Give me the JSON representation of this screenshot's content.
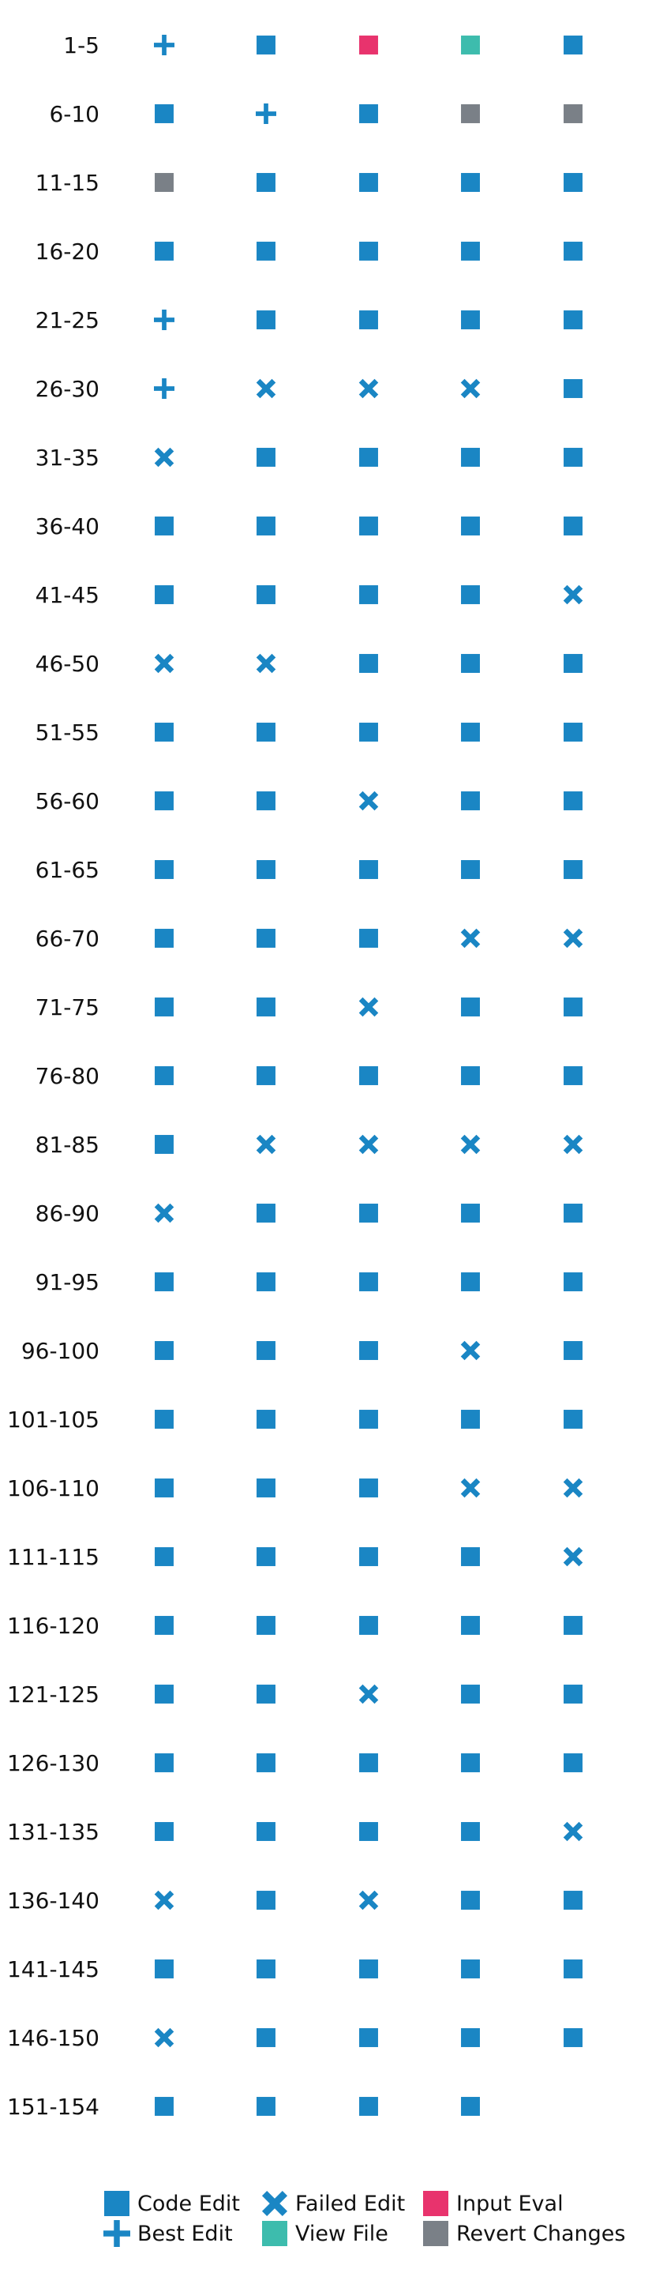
{
  "chart_data": {
    "type": "table",
    "title": "",
    "xlabel": "",
    "ylabel": "",
    "grid": false,
    "legend_placement": "bottom",
    "colors": {
      "code_edit": "#1a86c4",
      "best_edit": "#1a86c4",
      "failed_edit": "#1a86c4",
      "input_eval": "#e8336d",
      "view_file": "#3dbcad",
      "revert_changes": "#7a8087"
    },
    "legend": [
      {
        "key": "code_edit",
        "label": "Code Edit",
        "marker": "square"
      },
      {
        "key": "best_edit",
        "label": "Best Edit",
        "marker": "plus"
      },
      {
        "key": "failed_edit",
        "label": "Failed Edit",
        "marker": "cross"
      },
      {
        "key": "view_file",
        "label": "View File",
        "marker": "square"
      },
      {
        "key": "input_eval",
        "label": "Input Eval",
        "marker": "square"
      },
      {
        "key": "revert_changes",
        "label": "Revert Changes",
        "marker": "square"
      }
    ],
    "rows": [
      {
        "label": "1-5",
        "steps": [
          "best_edit",
          "code_edit",
          "input_eval",
          "view_file",
          "code_edit"
        ]
      },
      {
        "label": "6-10",
        "steps": [
          "code_edit",
          "best_edit",
          "code_edit",
          "revert_changes",
          "revert_changes"
        ]
      },
      {
        "label": "11-15",
        "steps": [
          "revert_changes",
          "code_edit",
          "code_edit",
          "code_edit",
          "code_edit"
        ]
      },
      {
        "label": "16-20",
        "steps": [
          "code_edit",
          "code_edit",
          "code_edit",
          "code_edit",
          "code_edit"
        ]
      },
      {
        "label": "21-25",
        "steps": [
          "best_edit",
          "code_edit",
          "code_edit",
          "code_edit",
          "code_edit"
        ]
      },
      {
        "label": "26-30",
        "steps": [
          "best_edit",
          "failed_edit",
          "failed_edit",
          "failed_edit",
          "code_edit"
        ]
      },
      {
        "label": "31-35",
        "steps": [
          "failed_edit",
          "code_edit",
          "code_edit",
          "code_edit",
          "code_edit"
        ]
      },
      {
        "label": "36-40",
        "steps": [
          "code_edit",
          "code_edit",
          "code_edit",
          "code_edit",
          "code_edit"
        ]
      },
      {
        "label": "41-45",
        "steps": [
          "code_edit",
          "code_edit",
          "code_edit",
          "code_edit",
          "failed_edit"
        ]
      },
      {
        "label": "46-50",
        "steps": [
          "failed_edit",
          "failed_edit",
          "code_edit",
          "code_edit",
          "code_edit"
        ]
      },
      {
        "label": "51-55",
        "steps": [
          "code_edit",
          "code_edit",
          "code_edit",
          "code_edit",
          "code_edit"
        ]
      },
      {
        "label": "56-60",
        "steps": [
          "code_edit",
          "code_edit",
          "failed_edit",
          "code_edit",
          "code_edit"
        ]
      },
      {
        "label": "61-65",
        "steps": [
          "code_edit",
          "code_edit",
          "code_edit",
          "code_edit",
          "code_edit"
        ]
      },
      {
        "label": "66-70",
        "steps": [
          "code_edit",
          "code_edit",
          "code_edit",
          "failed_edit",
          "failed_edit"
        ]
      },
      {
        "label": "71-75",
        "steps": [
          "code_edit",
          "code_edit",
          "failed_edit",
          "code_edit",
          "code_edit"
        ]
      },
      {
        "label": "76-80",
        "steps": [
          "code_edit",
          "code_edit",
          "code_edit",
          "code_edit",
          "code_edit"
        ]
      },
      {
        "label": "81-85",
        "steps": [
          "code_edit",
          "failed_edit",
          "failed_edit",
          "failed_edit",
          "failed_edit"
        ]
      },
      {
        "label": "86-90",
        "steps": [
          "failed_edit",
          "code_edit",
          "code_edit",
          "code_edit",
          "code_edit"
        ]
      },
      {
        "label": "91-95",
        "steps": [
          "code_edit",
          "code_edit",
          "code_edit",
          "code_edit",
          "code_edit"
        ]
      },
      {
        "label": "96-100",
        "steps": [
          "code_edit",
          "code_edit",
          "code_edit",
          "failed_edit",
          "code_edit"
        ]
      },
      {
        "label": "101-105",
        "steps": [
          "code_edit",
          "code_edit",
          "code_edit",
          "code_edit",
          "code_edit"
        ]
      },
      {
        "label": "106-110",
        "steps": [
          "code_edit",
          "code_edit",
          "code_edit",
          "failed_edit",
          "failed_edit"
        ]
      },
      {
        "label": "111-115",
        "steps": [
          "code_edit",
          "code_edit",
          "code_edit",
          "code_edit",
          "failed_edit"
        ]
      },
      {
        "label": "116-120",
        "steps": [
          "code_edit",
          "code_edit",
          "code_edit",
          "code_edit",
          "code_edit"
        ]
      },
      {
        "label": "121-125",
        "steps": [
          "code_edit",
          "code_edit",
          "failed_edit",
          "code_edit",
          "code_edit"
        ]
      },
      {
        "label": "126-130",
        "steps": [
          "code_edit",
          "code_edit",
          "code_edit",
          "code_edit",
          "code_edit"
        ]
      },
      {
        "label": "131-135",
        "steps": [
          "code_edit",
          "code_edit",
          "code_edit",
          "code_edit",
          "failed_edit"
        ]
      },
      {
        "label": "136-140",
        "steps": [
          "failed_edit",
          "code_edit",
          "failed_edit",
          "code_edit",
          "code_edit"
        ]
      },
      {
        "label": "141-145",
        "steps": [
          "code_edit",
          "code_edit",
          "code_edit",
          "code_edit",
          "code_edit"
        ]
      },
      {
        "label": "146-150",
        "steps": [
          "failed_edit",
          "code_edit",
          "code_edit",
          "code_edit",
          "code_edit"
        ]
      },
      {
        "label": "151-154",
        "steps": [
          "code_edit",
          "code_edit",
          "code_edit",
          "code_edit"
        ]
      }
    ]
  }
}
